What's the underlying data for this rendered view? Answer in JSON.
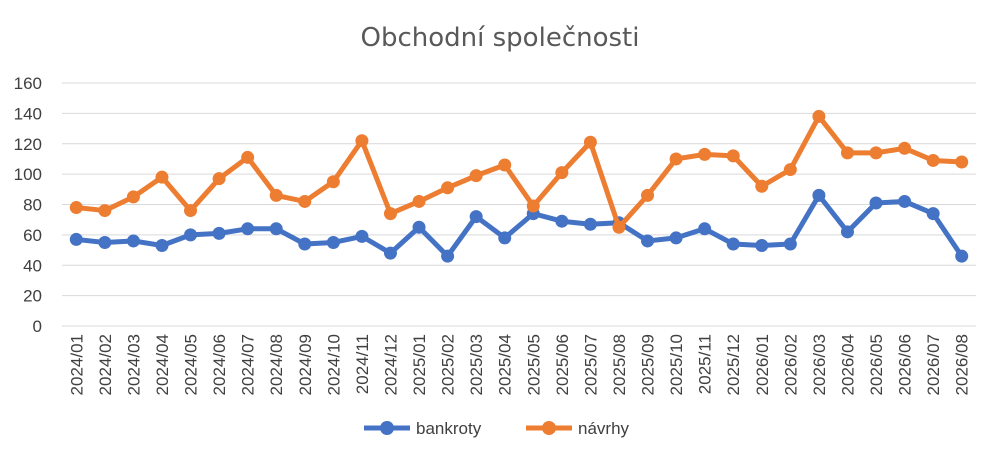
{
  "chart_data": {
    "type": "line",
    "title": "Obchodní společnosti",
    "xlabel": "",
    "ylabel": "",
    "ylim": [
      0,
      160
    ],
    "yticks": [
      0,
      20,
      40,
      60,
      80,
      100,
      120,
      140,
      160
    ],
    "grid": true,
    "legend_position": "bottom",
    "categories": [
      "2024/01",
      "2024/02",
      "2024/03",
      "2024/04",
      "2024/05",
      "2024/06",
      "2024/07",
      "2024/08",
      "2024/09",
      "2024/10",
      "2024/11",
      "2024/12",
      "2025/01",
      "2025/02",
      "2025/03",
      "2025/04",
      "2025/05",
      "2025/06",
      "2025/07",
      "2025/08",
      "2025/09",
      "2025/10",
      "2025/11",
      "2025/12",
      "2026/01",
      "2026/02",
      "2026/03",
      "2026/04",
      "2026/05",
      "2026/06",
      "2026/07",
      "2026/08"
    ],
    "series": [
      {
        "name": "bankroty",
        "color": "#4472c4",
        "values": [
          57,
          55,
          56,
          53,
          60,
          61,
          64,
          64,
          54,
          55,
          59,
          48,
          65,
          46,
          72,
          58,
          74,
          69,
          67,
          68,
          56,
          58,
          64,
          54,
          53,
          54,
          86,
          62,
          81,
          82,
          74,
          46
        ]
      },
      {
        "name": "návrhy",
        "color": "#ed7d31",
        "values": [
          78,
          76,
          85,
          98,
          76,
          97,
          111,
          86,
          82,
          95,
          122,
          74,
          82,
          91,
          99,
          106,
          79,
          101,
          121,
          65,
          86,
          110,
          113,
          112,
          92,
          103,
          138,
          114,
          114,
          117,
          109,
          108
        ]
      }
    ]
  }
}
